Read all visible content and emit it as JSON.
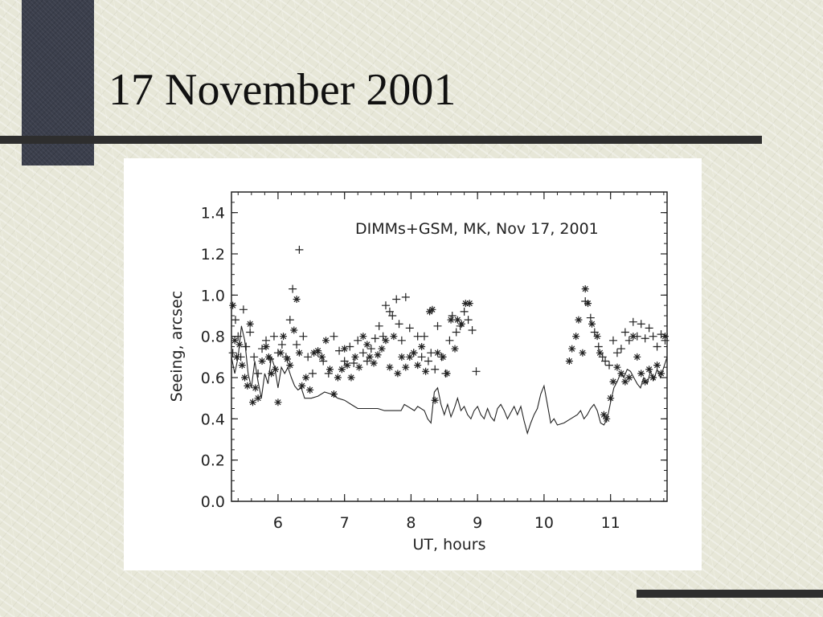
{
  "slide": {
    "title": "17 November 2001"
  },
  "colors": {
    "background": "#e7e7d8",
    "dark_block": "#3b3f4c",
    "rule": "#2e2e2e",
    "chart_bg": "#ffffff",
    "ink": "#222222"
  },
  "chart_data": {
    "type": "scatter",
    "title": "DIMMs+GSM, MK, Nov 17, 2001",
    "xlabel": "UT, hours",
    "ylabel": "Seeing, arcsec",
    "xlim": [
      5.3,
      11.85
    ],
    "ylim": [
      0.0,
      1.5
    ],
    "xticks": [
      6,
      7,
      8,
      9,
      10,
      11
    ],
    "yticks": [
      0.0,
      0.2,
      0.4,
      0.6,
      0.8,
      1.0,
      1.2,
      1.4
    ],
    "ytick_labels": [
      "0.0",
      "0.2",
      "0.4",
      "0.6",
      "0.8",
      "1.0",
      "1.2",
      "1.4"
    ],
    "grid": false,
    "series": [
      {
        "marker": "plus",
        "points": [
          [
            5.32,
            0.72
          ],
          [
            5.36,
            0.88
          ],
          [
            5.4,
            0.8
          ],
          [
            5.44,
            0.7
          ],
          [
            5.48,
            0.93
          ],
          [
            5.52,
            0.75
          ],
          [
            5.58,
            0.82
          ],
          [
            5.64,
            0.7
          ],
          [
            5.7,
            0.62
          ],
          [
            5.76,
            0.74
          ],
          [
            5.82,
            0.78
          ],
          [
            5.88,
            0.69
          ],
          [
            5.94,
            0.8
          ],
          [
            6.0,
            0.72
          ],
          [
            6.06,
            0.76
          ],
          [
            6.12,
            0.7
          ],
          [
            6.18,
            0.88
          ],
          [
            6.22,
            1.03
          ],
          [
            6.28,
            0.76
          ],
          [
            6.32,
            1.22
          ],
          [
            6.38,
            0.8
          ],
          [
            6.45,
            0.7
          ],
          [
            6.52,
            0.62
          ],
          [
            6.6,
            0.72
          ],
          [
            6.68,
            0.68
          ],
          [
            6.76,
            0.62
          ],
          [
            6.84,
            0.8
          ],
          [
            6.92,
            0.73
          ],
          [
            7.0,
            0.68
          ],
          [
            7.08,
            0.75
          ],
          [
            7.14,
            0.67
          ],
          [
            7.2,
            0.78
          ],
          [
            7.28,
            0.72
          ],
          [
            7.34,
            0.68
          ],
          [
            7.4,
            0.74
          ],
          [
            7.46,
            0.79
          ],
          [
            7.52,
            0.85
          ],
          [
            7.58,
            0.8
          ],
          [
            7.62,
            0.95
          ],
          [
            7.68,
            0.92
          ],
          [
            7.72,
            0.9
          ],
          [
            7.78,
            0.98
          ],
          [
            7.82,
            0.86
          ],
          [
            7.86,
            0.78
          ],
          [
            7.92,
            0.99
          ],
          [
            7.98,
            0.84
          ],
          [
            8.04,
            0.72
          ],
          [
            8.1,
            0.8
          ],
          [
            8.16,
            0.7
          ],
          [
            8.2,
            0.8
          ],
          [
            8.26,
            0.68
          ],
          [
            8.3,
            0.72
          ],
          [
            8.36,
            0.64
          ],
          [
            8.4,
            0.85
          ],
          [
            8.46,
            0.7
          ],
          [
            8.52,
            0.62
          ],
          [
            8.58,
            0.78
          ],
          [
            8.62,
            0.9
          ],
          [
            8.68,
            0.82
          ],
          [
            8.74,
            0.85
          ],
          [
            8.8,
            0.92
          ],
          [
            8.86,
            0.88
          ],
          [
            8.92,
            0.83
          ],
          [
            8.98,
            0.63
          ],
          [
            10.62,
            0.97
          ],
          [
            10.7,
            0.89
          ],
          [
            10.76,
            0.82
          ],
          [
            10.82,
            0.75
          ],
          [
            10.88,
            0.7
          ],
          [
            10.92,
            0.68
          ],
          [
            10.98,
            0.66
          ],
          [
            11.04,
            0.78
          ],
          [
            11.1,
            0.72
          ],
          [
            11.16,
            0.74
          ],
          [
            11.22,
            0.82
          ],
          [
            11.28,
            0.78
          ],
          [
            11.34,
            0.87
          ],
          [
            11.4,
            0.8
          ],
          [
            11.46,
            0.86
          ],
          [
            11.52,
            0.79
          ],
          [
            11.58,
            0.84
          ],
          [
            11.64,
            0.8
          ],
          [
            11.7,
            0.75
          ],
          [
            11.76,
            0.81
          ],
          [
            11.82,
            0.78
          ]
        ]
      },
      {
        "marker": "asterisk",
        "points": [
          [
            5.32,
            0.95
          ],
          [
            5.35,
            0.78
          ],
          [
            5.38,
            0.7
          ],
          [
            5.42,
            0.76
          ],
          [
            5.46,
            0.66
          ],
          [
            5.5,
            0.6
          ],
          [
            5.54,
            0.56
          ],
          [
            5.58,
            0.86
          ],
          [
            5.62,
            0.48
          ],
          [
            5.66,
            0.55
          ],
          [
            5.7,
            0.5
          ],
          [
            5.76,
            0.68
          ],
          [
            5.82,
            0.75
          ],
          [
            5.86,
            0.7
          ],
          [
            5.9,
            0.62
          ],
          [
            5.96,
            0.64
          ],
          [
            6.0,
            0.48
          ],
          [
            6.04,
            0.72
          ],
          [
            6.08,
            0.8
          ],
          [
            6.14,
            0.69
          ],
          [
            6.18,
            0.66
          ],
          [
            6.24,
            0.83
          ],
          [
            6.28,
            0.98
          ],
          [
            6.32,
            0.72
          ],
          [
            6.36,
            0.56
          ],
          [
            6.42,
            0.6
          ],
          [
            6.48,
            0.54
          ],
          [
            6.54,
            0.72
          ],
          [
            6.6,
            0.73
          ],
          [
            6.66,
            0.7
          ],
          [
            6.72,
            0.78
          ],
          [
            6.78,
            0.64
          ],
          [
            6.84,
            0.52
          ],
          [
            6.9,
            0.6
          ],
          [
            6.96,
            0.64
          ],
          [
            7.0,
            0.74
          ],
          [
            7.04,
            0.66
          ],
          [
            7.1,
            0.6
          ],
          [
            7.16,
            0.7
          ],
          [
            7.22,
            0.65
          ],
          [
            7.28,
            0.8
          ],
          [
            7.34,
            0.76
          ],
          [
            7.38,
            0.7
          ],
          [
            7.44,
            0.67
          ],
          [
            7.5,
            0.71
          ],
          [
            7.56,
            0.74
          ],
          [
            7.62,
            0.78
          ],
          [
            7.68,
            0.65
          ],
          [
            7.74,
            0.8
          ],
          [
            7.8,
            0.62
          ],
          [
            7.86,
            0.7
          ],
          [
            7.92,
            0.65
          ],
          [
            7.98,
            0.7
          ],
          [
            8.04,
            0.72
          ],
          [
            8.1,
            0.66
          ],
          [
            8.16,
            0.75
          ],
          [
            8.22,
            0.63
          ],
          [
            8.28,
            0.92
          ],
          [
            8.32,
            0.93
          ],
          [
            8.36,
            0.49
          ],
          [
            8.4,
            0.72
          ],
          [
            8.48,
            0.7
          ],
          [
            8.54,
            0.62
          ],
          [
            8.6,
            0.88
          ],
          [
            8.66,
            0.74
          ],
          [
            8.7,
            0.88
          ],
          [
            8.76,
            0.86
          ],
          [
            8.82,
            0.96
          ],
          [
            8.88,
            0.96
          ],
          [
            10.38,
            0.68
          ],
          [
            10.42,
            0.74
          ],
          [
            10.48,
            0.8
          ],
          [
            10.52,
            0.88
          ],
          [
            10.58,
            0.72
          ],
          [
            10.62,
            1.03
          ],
          [
            10.66,
            0.96
          ],
          [
            10.72,
            0.86
          ],
          [
            10.8,
            0.8
          ],
          [
            10.84,
            0.72
          ],
          [
            10.9,
            0.42
          ],
          [
            10.94,
            0.4
          ],
          [
            11.0,
            0.5
          ],
          [
            11.04,
            0.58
          ],
          [
            11.1,
            0.65
          ],
          [
            11.16,
            0.62
          ],
          [
            11.22,
            0.58
          ],
          [
            11.28,
            0.6
          ],
          [
            11.34,
            0.8
          ],
          [
            11.4,
            0.7
          ],
          [
            11.46,
            0.62
          ],
          [
            11.52,
            0.58
          ],
          [
            11.58,
            0.64
          ],
          [
            11.64,
            0.6
          ],
          [
            11.7,
            0.66
          ],
          [
            11.76,
            0.62
          ],
          [
            11.82,
            0.8
          ]
        ]
      },
      {
        "marker": "line",
        "points": [
          [
            5.3,
            0.7
          ],
          [
            5.35,
            0.62
          ],
          [
            5.4,
            0.7
          ],
          [
            5.45,
            0.85
          ],
          [
            5.5,
            0.78
          ],
          [
            5.55,
            0.62
          ],
          [
            5.6,
            0.55
          ],
          [
            5.65,
            0.68
          ],
          [
            5.7,
            0.58
          ],
          [
            5.75,
            0.5
          ],
          [
            5.8,
            0.62
          ],
          [
            5.85,
            0.57
          ],
          [
            5.9,
            0.7
          ],
          [
            5.95,
            0.65
          ],
          [
            6.0,
            0.55
          ],
          [
            6.05,
            0.65
          ],
          [
            6.1,
            0.62
          ],
          [
            6.15,
            0.65
          ],
          [
            6.2,
            0.6
          ],
          [
            6.25,
            0.56
          ],
          [
            6.3,
            0.54
          ],
          [
            6.35,
            0.55
          ],
          [
            6.4,
            0.5
          ],
          [
            6.5,
            0.5
          ],
          [
            6.6,
            0.51
          ],
          [
            6.7,
            0.53
          ],
          [
            6.8,
            0.52
          ],
          [
            6.9,
            0.5
          ],
          [
            7.0,
            0.49
          ],
          [
            7.1,
            0.47
          ],
          [
            7.2,
            0.45
          ],
          [
            7.3,
            0.45
          ],
          [
            7.4,
            0.45
          ],
          [
            7.5,
            0.45
          ],
          [
            7.6,
            0.44
          ],
          [
            7.7,
            0.44
          ],
          [
            7.8,
            0.44
          ],
          [
            7.85,
            0.44
          ],
          [
            7.9,
            0.47
          ],
          [
            8.0,
            0.45
          ],
          [
            8.05,
            0.44
          ],
          [
            8.1,
            0.46
          ],
          [
            8.2,
            0.44
          ],
          [
            8.25,
            0.4
          ],
          [
            8.3,
            0.38
          ],
          [
            8.35,
            0.53
          ],
          [
            8.4,
            0.55
          ],
          [
            8.45,
            0.47
          ],
          [
            8.5,
            0.42
          ],
          [
            8.55,
            0.47
          ],
          [
            8.6,
            0.41
          ],
          [
            8.65,
            0.45
          ],
          [
            8.7,
            0.5
          ],
          [
            8.75,
            0.44
          ],
          [
            8.8,
            0.46
          ],
          [
            8.85,
            0.42
          ],
          [
            8.9,
            0.4
          ],
          [
            8.95,
            0.44
          ],
          [
            9.0,
            0.46
          ],
          [
            9.05,
            0.42
          ],
          [
            9.1,
            0.4
          ],
          [
            9.15,
            0.45
          ],
          [
            9.2,
            0.41
          ],
          [
            9.25,
            0.39
          ],
          [
            9.3,
            0.45
          ],
          [
            9.35,
            0.47
          ],
          [
            9.4,
            0.44
          ],
          [
            9.45,
            0.4
          ],
          [
            9.5,
            0.43
          ],
          [
            9.55,
            0.46
          ],
          [
            9.6,
            0.42
          ],
          [
            9.65,
            0.46
          ],
          [
            9.7,
            0.39
          ],
          [
            9.75,
            0.33
          ],
          [
            9.8,
            0.38
          ],
          [
            9.85,
            0.42
          ],
          [
            9.9,
            0.45
          ],
          [
            9.95,
            0.52
          ],
          [
            10.0,
            0.56
          ],
          [
            10.05,
            0.47
          ],
          [
            10.1,
            0.38
          ],
          [
            10.15,
            0.4
          ],
          [
            10.2,
            0.37
          ],
          [
            10.3,
            0.38
          ],
          [
            10.4,
            0.4
          ],
          [
            10.5,
            0.42
          ],
          [
            10.55,
            0.44
          ],
          [
            10.6,
            0.4
          ],
          [
            10.65,
            0.42
          ],
          [
            10.7,
            0.45
          ],
          [
            10.75,
            0.47
          ],
          [
            10.8,
            0.44
          ],
          [
            10.85,
            0.38
          ],
          [
            10.9,
            0.37
          ],
          [
            10.95,
            0.4
          ],
          [
            11.0,
            0.48
          ],
          [
            11.05,
            0.55
          ],
          [
            11.1,
            0.58
          ],
          [
            11.15,
            0.62
          ],
          [
            11.2,
            0.6
          ],
          [
            11.25,
            0.64
          ],
          [
            11.3,
            0.63
          ],
          [
            11.35,
            0.6
          ],
          [
            11.4,
            0.57
          ],
          [
            11.45,
            0.55
          ],
          [
            11.5,
            0.6
          ],
          [
            11.55,
            0.57
          ],
          [
            11.6,
            0.63
          ],
          [
            11.65,
            0.59
          ],
          [
            11.7,
            0.64
          ],
          [
            11.75,
            0.6
          ],
          [
            11.8,
            0.65
          ],
          [
            11.85,
            0.7
          ]
        ]
      }
    ]
  }
}
